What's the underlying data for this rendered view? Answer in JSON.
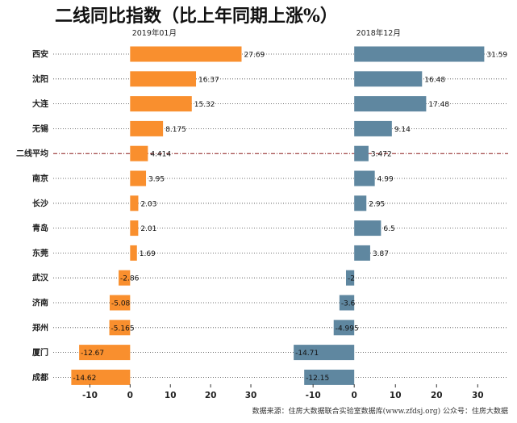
{
  "page": {
    "title": "二线同比指数（比上年同期上涨%）",
    "source": "数据来源：住房大数据联合实验室数据库(www.zfdsj.org) 公众号：住房大数据"
  },
  "chart_data": [
    {
      "type": "bar",
      "orientation": "horizontal",
      "title": "2019年01月",
      "color": "#F98F2E",
      "categories": [
        "西安",
        "沈阳",
        "大连",
        "无锡",
        "二线平均",
        "南京",
        "长沙",
        "青岛",
        "东莞",
        "武汉",
        "济南",
        "郑州",
        "厦门",
        "成都"
      ],
      "values": [
        27.69,
        16.37,
        15.32,
        8.175,
        4.414,
        3.95,
        2.03,
        2.01,
        1.69,
        -2.86,
        -5.08,
        -5.165,
        -12.67,
        -14.62
      ],
      "value_labels": [
        "27.69",
        "16.37",
        "15.32",
        "8.175",
        "4.414",
        "3.95",
        "2.03",
        "2.01",
        "1.69",
        "-2.86",
        "-5.08",
        "-5.165",
        "-12.67",
        "-14.62"
      ],
      "xlim": [
        -16.5,
        33
      ],
      "xticks": [
        -10,
        0,
        10,
        20,
        30
      ],
      "xtick_labels": [
        "-10",
        "0",
        "10",
        "20",
        "30"
      ]
    },
    {
      "type": "bar",
      "orientation": "horizontal",
      "title": "2018年12月",
      "color": "#5F87A0",
      "categories": [
        "西安",
        "沈阳",
        "大连",
        "无锡",
        "二线平均",
        "南京",
        "长沙",
        "青岛",
        "东莞",
        "武汉",
        "济南",
        "郑州",
        "厦门",
        "成都"
      ],
      "values": [
        31.59,
        16.48,
        17.48,
        9.14,
        3.472,
        4.99,
        2.95,
        6.5,
        3.87,
        -2,
        -3.6,
        -4.995,
        -14.71,
        -12.15
      ],
      "value_labels": [
        "31.59",
        "16.48",
        "17.48",
        "9.14",
        "3.472",
        "4.99",
        "2.95",
        "6.5",
        "3.87",
        "-2",
        "-3.6",
        "-4.995",
        "-14.71",
        "-12.15"
      ],
      "xlim": [
        -16.5,
        37
      ],
      "xticks": [
        -10,
        0,
        10,
        20,
        30
      ],
      "xtick_labels": [
        "-10",
        "0",
        "10",
        "20",
        "30"
      ]
    }
  ],
  "highlight_category": "二线平均",
  "highlight_color": "#8B1A1A"
}
